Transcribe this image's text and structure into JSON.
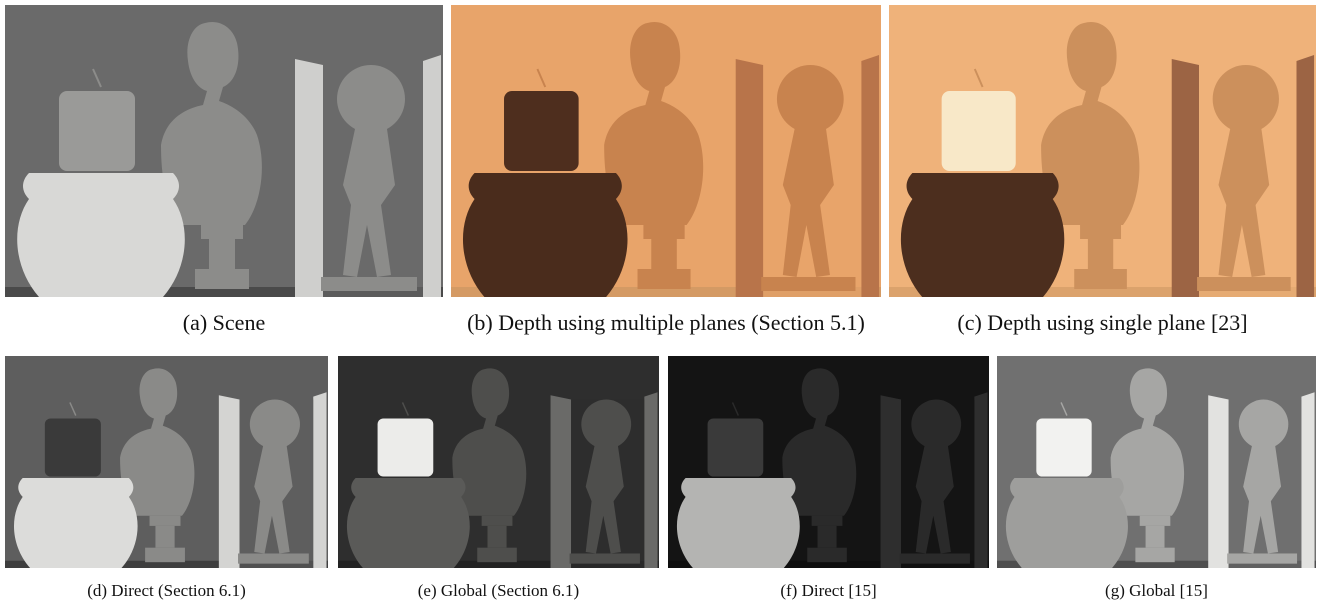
{
  "figure": {
    "top_row": [
      {
        "id": "a",
        "caption": "(a) Scene",
        "style": "gray"
      },
      {
        "id": "b",
        "caption": "(b) Depth using multiple planes (Section 5.1)",
        "style": "depth"
      },
      {
        "id": "c",
        "caption": "(c) Depth using single plane [23]",
        "style": "depth2"
      }
    ],
    "bottom_row": [
      {
        "id": "d",
        "caption": "(d) Direct (Section 6.1)",
        "style": "direct"
      },
      {
        "id": "e",
        "caption": "(e) Global (Section 6.1)",
        "style": "global"
      },
      {
        "id": "f",
        "caption": "(f) Direct [15]",
        "style": "direct2"
      },
      {
        "id": "g",
        "caption": "(g) Global [15]",
        "style": "global2"
      }
    ]
  },
  "palettes": {
    "gray": {
      "bg": "#6a6a6a",
      "vase": "#d8d8d6",
      "candle": "#9a9a98",
      "statue": "#8c8c8a",
      "board": "#cfcfcd",
      "base": "#4a4a4a"
    },
    "depth": {
      "bg": "#e8a46a",
      "vase": "#4a2c1c",
      "candle": "#4e2e1e",
      "statue": "#c8834e",
      "board": "#b8744a",
      "base": "#d49a64"
    },
    "depth2": {
      "bg": "#efb27a",
      "vase": "#4c2e1e",
      "candle": "#f8e8c8",
      "statue": "#cc905c",
      "board": "#9c6444",
      "base": "#dba26c"
    },
    "direct": {
      "bg": "#5e5e5e",
      "vase": "#dcdcda",
      "candle": "#3a3a3a",
      "statue": "#8a8a88",
      "board": "#d4d4d2",
      "base": "#3e3e3e"
    },
    "global": {
      "bg": "#2e2e2e",
      "vase": "#5a5a58",
      "candle": "#ececea",
      "statue": "#4e4e4c",
      "board": "#6a6a68",
      "base": "#222222"
    },
    "direct2": {
      "bg": "#141414",
      "vase": "#b4b4b2",
      "candle": "#3a3a3a",
      "statue": "#2a2a2a",
      "board": "#2e2e2e",
      "base": "#0e0e0e"
    },
    "global2": {
      "bg": "#707070",
      "vase": "#9e9e9c",
      "candle": "#f2f2f0",
      "statue": "#a6a6a4",
      "board": "#e2e2e0",
      "base": "#4e4e4e"
    }
  }
}
